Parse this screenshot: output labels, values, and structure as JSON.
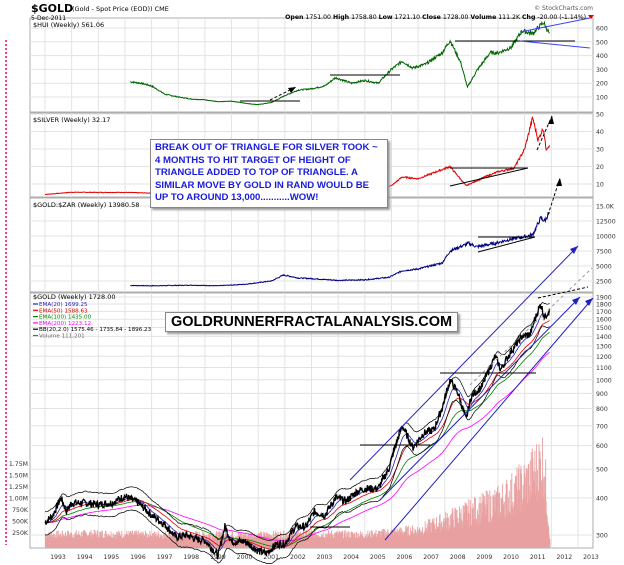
{
  "header": {
    "symbol": "$GOLD",
    "description": "(Gold - Spot Price (EOD)) CME",
    "date": "5-Dec-2011",
    "copyright": "© StockCharts.com",
    "open_label": "Open",
    "open": "1751.00",
    "high_label": "High",
    "high": "1758.80",
    "low_label": "Low",
    "low": "1721.10",
    "close_label": "Close",
    "close": "1728.00",
    "volume_label": "Volume",
    "volume": "111.2K",
    "chg_label": "Chg",
    "chg": "-20.00 (-1.14%)"
  },
  "annotation": "BREAK OUT OF TRIANGLE FOR SILVER TOOK ~ 4 MONTHS TO HIT TARGET OF HEIGHT OF TRIANGLE ADDED TO TOP OF TRIANGLE.  A SIMILAR MOVE BY GOLD IN RAND WOULD BE UP TO AROUND 13,000...........WOW!",
  "watermark": "GOLDRUNNERFRACTALANALYSIS.COM",
  "colors": {
    "hui": "#006400",
    "silver": "#e00000",
    "zar": "#000080",
    "gold": "#000000",
    "ema20": "#2020c0",
    "ema50": "#e00000",
    "ema100": "#008000",
    "ema200": "#ff00ff",
    "volume": "#e8a0a0",
    "annotation": "#1a1adc"
  },
  "chart_data": [
    {
      "type": "line",
      "title": "$HUI (Weekly) 561.06",
      "scale": "linear",
      "ylim": [
        50,
        650
      ],
      "yticks": [
        "600",
        "500",
        "400",
        "300",
        "200",
        "100"
      ],
      "x": [
        1996.2,
        1996.6,
        1997.0,
        1997.5,
        1998.0,
        1998.5,
        1999.0,
        1999.5,
        2000.0,
        2000.7,
        2001.0,
        2001.5,
        2002.0,
        2002.5,
        2003.0,
        2003.5,
        2003.9,
        2004.5,
        2005.0,
        2005.5,
        2006.0,
        2006.4,
        2006.8,
        2007.3,
        2007.9,
        2008.2,
        2008.6,
        2008.85,
        2009.2,
        2009.7,
        2010.0,
        2010.5,
        2010.9,
        2011.3,
        2011.7,
        2011.93
      ],
      "values": [
        210,
        200,
        180,
        120,
        100,
        85,
        80,
        65,
        70,
        50,
        45,
        60,
        110,
        150,
        160,
        180,
        240,
        200,
        220,
        200,
        300,
        360,
        310,
        340,
        420,
        510,
        350,
        170,
        290,
        420,
        420,
        460,
        580,
        560,
        640,
        561.06
      ]
    },
    {
      "type": "line",
      "title": "$SILVER (Weekly) 32.17",
      "scale": "linear",
      "ylim": [
        0,
        55
      ],
      "yticks": [
        "50",
        "40",
        "30",
        "20",
        "10"
      ],
      "x": [
        1993.0,
        1994.0,
        1995.0,
        1996.0,
        1997.0,
        1998.1,
        1999.0,
        2000.0,
        2001.0,
        2002.0,
        2003.0,
        2004.3,
        2005.0,
        2006.0,
        2006.4,
        2007.0,
        2008.2,
        2008.8,
        2009.5,
        2010.0,
        2010.6,
        2011.0,
        2011.3,
        2011.5,
        2011.7,
        2011.8,
        2011.93
      ],
      "values": [
        4,
        5.3,
        5.2,
        5.2,
        4.8,
        6.5,
        5.2,
        5.0,
        4.5,
        4.6,
        4.8,
        7.5,
        7,
        9,
        14,
        13,
        20,
        9,
        14,
        17,
        19,
        30,
        48,
        35,
        42,
        30,
        32.17
      ]
    },
    {
      "type": "line",
      "title": "$GOLD:$ZAR (Weekly) 13980.58",
      "scale": "linear",
      "ylim": [
        0,
        16500
      ],
      "yticks": [
        "15.0K",
        "12500",
        "10000",
        "7500",
        "5000",
        "2500"
      ],
      "x": [
        1996.2,
        1997.0,
        1998.5,
        1999.5,
        2000.5,
        2001.5,
        2001.95,
        2002.5,
        2003.0,
        2004.0,
        2005.0,
        2005.9,
        2006.4,
        2007.0,
        2007.9,
        2008.2,
        2008.9,
        2009.2,
        2009.9,
        2010.5,
        2010.9,
        2011.3,
        2011.6,
        2011.75,
        2011.93
      ],
      "values": [
        1750,
        1700,
        1800,
        1700,
        1950,
        2500,
        3500,
        3000,
        2900,
        2600,
        2700,
        3100,
        4200,
        4500,
        5500,
        7500,
        8800,
        8200,
        8800,
        9500,
        9800,
        10200,
        13000,
        12500,
        13980.58
      ]
    },
    {
      "type": "line",
      "title": "$GOLD (Weekly) 1728.00",
      "scale": "log",
      "yticks": [
        "1900",
        "1800",
        "1700",
        "1600",
        "1500",
        "1400",
        "1300",
        "1200",
        "1100",
        "1000",
        "900",
        "800",
        "700",
        "600",
        "500",
        "400",
        "300"
      ],
      "legend": [
        {
          "label": "EMA(20) 1699.25",
          "color": "#2020c0"
        },
        {
          "label": "EMA(50) 1588.63",
          "color": "#e00000"
        },
        {
          "label": "EMA(100) 1435.00",
          "color": "#008000"
        },
        {
          "label": "EMA(200) 1223.12",
          "color": "#ff00ff"
        },
        {
          "label": "BB(20,2.0) 1575.46 - 1735.84 - 1896.23",
          "color": "#000000"
        },
        {
          "label": "Volume 111,201",
          "color": "#666666"
        }
      ],
      "x": [
        1993.0,
        1993.3,
        1993.6,
        1993.8,
        1994.0,
        1994.5,
        1995.0,
        1995.5,
        1996.0,
        1996.5,
        1997.0,
        1997.5,
        1997.9,
        1998.3,
        1998.7,
        1999.0,
        1999.5,
        1999.75,
        2000.0,
        2000.5,
        2001.0,
        2001.3,
        2001.7,
        2002.0,
        2002.4,
        2002.8,
        2003.1,
        2003.5,
        2003.9,
        2004.3,
        2004.7,
        2005.0,
        2005.5,
        2005.9,
        2006.4,
        2006.8,
        2007.2,
        2007.6,
        2007.9,
        2008.2,
        2008.5,
        2008.8,
        2009.0,
        2009.4,
        2009.9,
        2010.1,
        2010.5,
        2010.9,
        2011.2,
        2011.6,
        2011.75,
        2011.93
      ],
      "values": [
        330,
        350,
        400,
        360,
        385,
        385,
        380,
        385,
        405,
        385,
        350,
        325,
        295,
        300,
        290,
        288,
        255,
        320,
        285,
        285,
        265,
        260,
        280,
        280,
        320,
        320,
        360,
        350,
        400,
        390,
        420,
        430,
        430,
        500,
        700,
        590,
        660,
        680,
        800,
        1000,
        900,
        730,
        880,
        950,
        1200,
        1080,
        1250,
        1400,
        1420,
        1800,
        1620,
        1728
      ],
      "volume": {
        "yticks": [
          "1.75M",
          "1.50M",
          "1.25M",
          "1.00M",
          "750K",
          "500K",
          "250K"
        ],
        "x": [
          1993,
          1995,
          1997,
          1999,
          2001,
          2003,
          2005,
          2007,
          2008,
          2009,
          2010,
          2011,
          2011.7,
          2011.93
        ],
        "values": [
          0.2,
          0.22,
          0.2,
          0.2,
          0.19,
          0.22,
          0.2,
          0.3,
          0.5,
          0.7,
          0.9,
          1.3,
          1.8,
          0.111
        ]
      }
    }
  ],
  "xaxis": {
    "labels": [
      "1993",
      "1994",
      "1995",
      "1996",
      "1997",
      "1998",
      "1999",
      "2000",
      "2001",
      "2002",
      "2003",
      "2004",
      "2005",
      "2006",
      "2007",
      "2008",
      "2009",
      "2010",
      "2011",
      "2012",
      "2013"
    ]
  }
}
